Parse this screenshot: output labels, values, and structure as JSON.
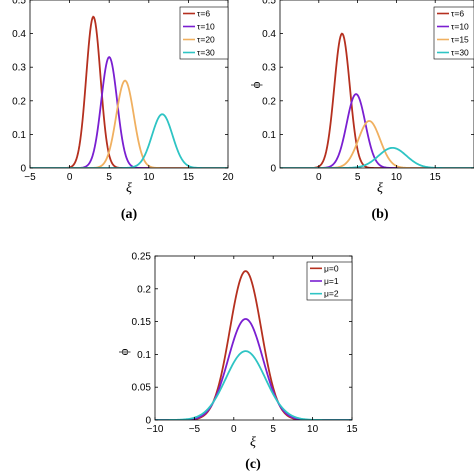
{
  "chart_data": [
    {
      "type": "line",
      "panel_label": "(a)",
      "xlabel": "ξ",
      "ylabel": "",
      "xlim": [
        -5,
        20
      ],
      "ylim": [
        0,
        0.5
      ],
      "xticks": [
        "−5",
        "0",
        "5",
        "10",
        "15",
        "20"
      ],
      "yticks": [
        "0",
        "0.1",
        "0.2",
        "0.3",
        "0.4",
        "0.5"
      ],
      "grid": false,
      "legend_position": "top-right",
      "series": [
        {
          "name": "τ=6",
          "color": "#b5301f",
          "peak_x": 3.0,
          "peak_y": 0.45,
          "width": 0.9,
          "x": [
            0,
            1,
            2,
            3,
            4,
            5,
            6
          ],
          "values": [
            0.01,
            0.09,
            0.32,
            0.45,
            0.32,
            0.09,
            0.01
          ]
        },
        {
          "name": "τ=10",
          "color": "#7a1fd1",
          "peak_x": 5.0,
          "peak_y": 0.33,
          "width": 1.0,
          "x": [
            2,
            3,
            4,
            5,
            6,
            7,
            8
          ],
          "values": [
            0.01,
            0.05,
            0.22,
            0.33,
            0.22,
            0.05,
            0.01
          ]
        },
        {
          "name": "τ=20",
          "color": "#f0b060",
          "peak_x": 7.0,
          "peak_y": 0.26,
          "width": 1.1,
          "x": [
            4,
            5,
            6,
            7,
            8,
            9,
            10
          ],
          "values": [
            0.01,
            0.05,
            0.18,
            0.26,
            0.18,
            0.05,
            0.01
          ]
        },
        {
          "name": "τ=30",
          "color": "#2ec4c4",
          "peak_x": 11.7,
          "peak_y": 0.16,
          "width": 1.3,
          "x": [
            8,
            9.5,
            10.5,
            11.7,
            13,
            14,
            15.5
          ],
          "values": [
            0.0,
            0.03,
            0.11,
            0.16,
            0.1,
            0.04,
            0.0
          ]
        }
      ]
    },
    {
      "type": "line",
      "panel_label": "(b)",
      "xlabel": "ξ",
      "ylabel": "ϕ",
      "xlim": [
        -5,
        20
      ],
      "ylim": [
        0,
        0.5
      ],
      "xticks": [
        "0",
        "5",
        "10",
        "15"
      ],
      "yticks": [
        "0",
        "0.1",
        "0.2",
        "0.3",
        "0.4",
        "0.5"
      ],
      "grid": false,
      "legend_position": "top-right",
      "series": [
        {
          "name": "τ=6",
          "color": "#b5301f",
          "peak_x": 3.0,
          "peak_y": 0.4,
          "width": 1.0,
          "x": [
            0,
            1,
            2,
            3,
            4,
            5,
            6
          ],
          "values": [
            0.01,
            0.07,
            0.28,
            0.4,
            0.28,
            0.07,
            0.01
          ]
        },
        {
          "name": "τ=10",
          "color": "#7a1fd1",
          "peak_x": 4.8,
          "peak_y": 0.22,
          "width": 1.2,
          "x": [
            1.5,
            3,
            4,
            4.8,
            6,
            7,
            8.5
          ],
          "values": [
            0.0,
            0.05,
            0.17,
            0.22,
            0.14,
            0.05,
            0.0
          ]
        },
        {
          "name": "τ=15",
          "color": "#f0b060",
          "peak_x": 6.5,
          "peak_y": 0.14,
          "width": 1.4,
          "x": [
            2.5,
            4.5,
            5.5,
            6.5,
            8,
            9,
            11
          ],
          "values": [
            0.0,
            0.05,
            0.11,
            0.14,
            0.09,
            0.04,
            0.0
          ]
        },
        {
          "name": "τ=30",
          "color": "#2ec4c4",
          "peak_x": 9.5,
          "peak_y": 0.06,
          "width": 1.8,
          "x": [
            5,
            7,
            8.5,
            9.5,
            11,
            12.5,
            14.5
          ],
          "values": [
            0.0,
            0.02,
            0.05,
            0.06,
            0.045,
            0.02,
            0.0
          ]
        }
      ]
    },
    {
      "type": "line",
      "panel_label": "(c)",
      "xlabel": "ξ",
      "ylabel": "ϕ",
      "xlim": [
        -10,
        15
      ],
      "ylim": [
        0,
        0.25
      ],
      "xticks": [
        "−10",
        "−5",
        "0",
        "5",
        "10",
        "15"
      ],
      "yticks": [
        "0",
        "0.05",
        "0.1",
        "0.15",
        "0.2",
        "0.25"
      ],
      "grid": false,
      "legend_position": "top-right",
      "series": [
        {
          "name": "μ=0",
          "color": "#b5301f",
          "peak_x": 1.5,
          "peak_y": 0.227,
          "width": 2.0,
          "x": [
            -5,
            -2,
            0,
            1.5,
            3,
            5,
            8
          ],
          "values": [
            0.003,
            0.06,
            0.17,
            0.227,
            0.17,
            0.06,
            0.003
          ]
        },
        {
          "name": "μ=1",
          "color": "#7a1fd1",
          "peak_x": 1.5,
          "peak_y": 0.154,
          "width": 2.2,
          "x": [
            -5,
            -2,
            0,
            1.5,
            3,
            5,
            8
          ],
          "values": [
            0.004,
            0.05,
            0.12,
            0.154,
            0.12,
            0.05,
            0.004
          ]
        },
        {
          "name": "μ=2",
          "color": "#2ec4c4",
          "peak_x": 1.5,
          "peak_y": 0.105,
          "width": 2.5,
          "x": [
            -5,
            -2,
            0,
            1.5,
            3,
            5,
            8
          ],
          "values": [
            0.006,
            0.04,
            0.085,
            0.105,
            0.085,
            0.04,
            0.006
          ]
        }
      ]
    }
  ]
}
